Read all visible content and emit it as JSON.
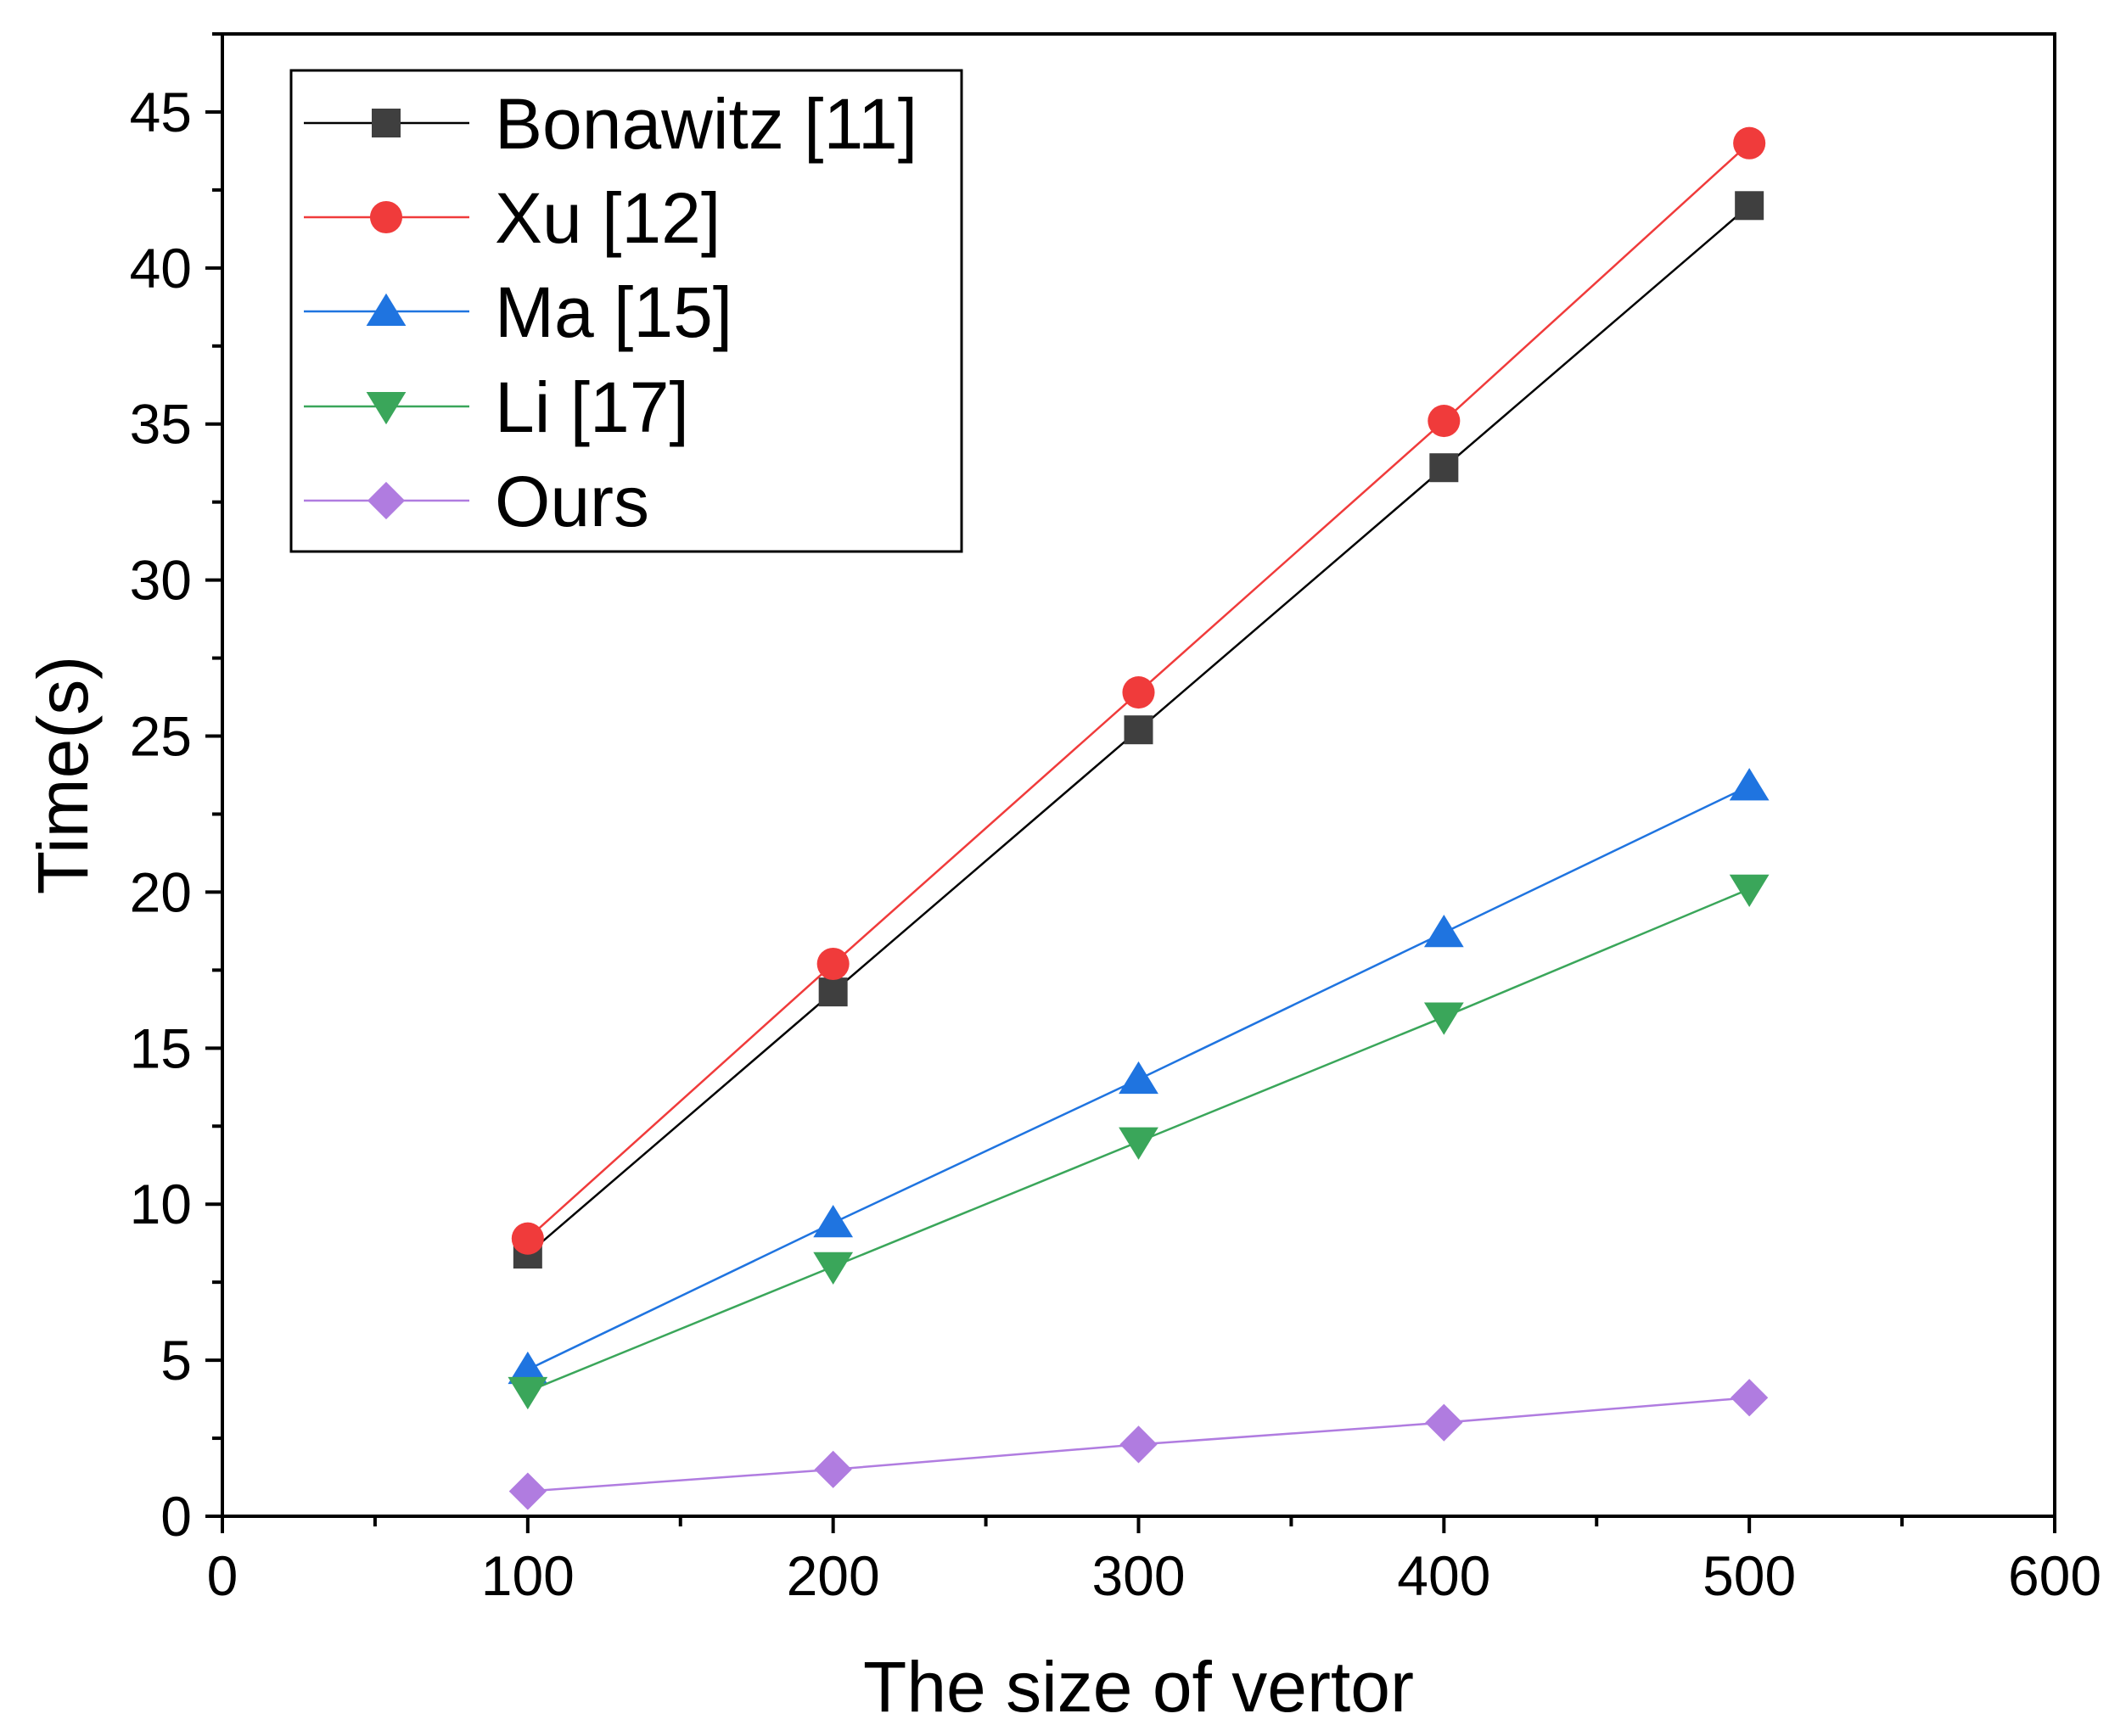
{
  "chart_data": {
    "type": "line",
    "title": "",
    "xlabel": "The size of vertor",
    "ylabel": "Time(s)",
    "xlim": [
      0,
      600
    ],
    "ylim": [
      0,
      47.5
    ],
    "xticks": [
      0,
      100,
      200,
      300,
      400,
      500,
      600
    ],
    "yticks": [
      0,
      5,
      10,
      15,
      20,
      25,
      30,
      35,
      40,
      45
    ],
    "x": [
      100,
      200,
      300,
      400,
      500
    ],
    "legend_position": "top-left",
    "grid": false,
    "series": [
      {
        "name": "Bonawitz [11]",
        "values": [
          8.4,
          16.8,
          25.2,
          33.6,
          42.0
        ],
        "color": "#3f3f3f",
        "line_color": "#000000",
        "marker": "square"
      },
      {
        "name": "Xu [12]",
        "values": [
          8.9,
          17.7,
          26.4,
          35.1,
          44.0
        ],
        "color": "#f03b3b",
        "line_color": "#f03b3b",
        "marker": "circle"
      },
      {
        "name": "Ma [15]",
        "values": [
          4.7,
          9.4,
          14.0,
          18.7,
          23.4
        ],
        "color": "#1f74e0",
        "line_color": "#1f74e0",
        "marker": "triangle-up"
      },
      {
        "name": "Li [17]",
        "values": [
          4.0,
          8.0,
          12.0,
          16.0,
          20.1
        ],
        "color": "#3aa65a",
        "line_color": "#3aa65a",
        "marker": "triangle-down"
      },
      {
        "name": "Ours",
        "values": [
          0.8,
          1.5,
          2.3,
          3.0,
          3.8
        ],
        "color": "#b07ce0",
        "line_color": "#b07ce0",
        "marker": "diamond"
      }
    ]
  }
}
